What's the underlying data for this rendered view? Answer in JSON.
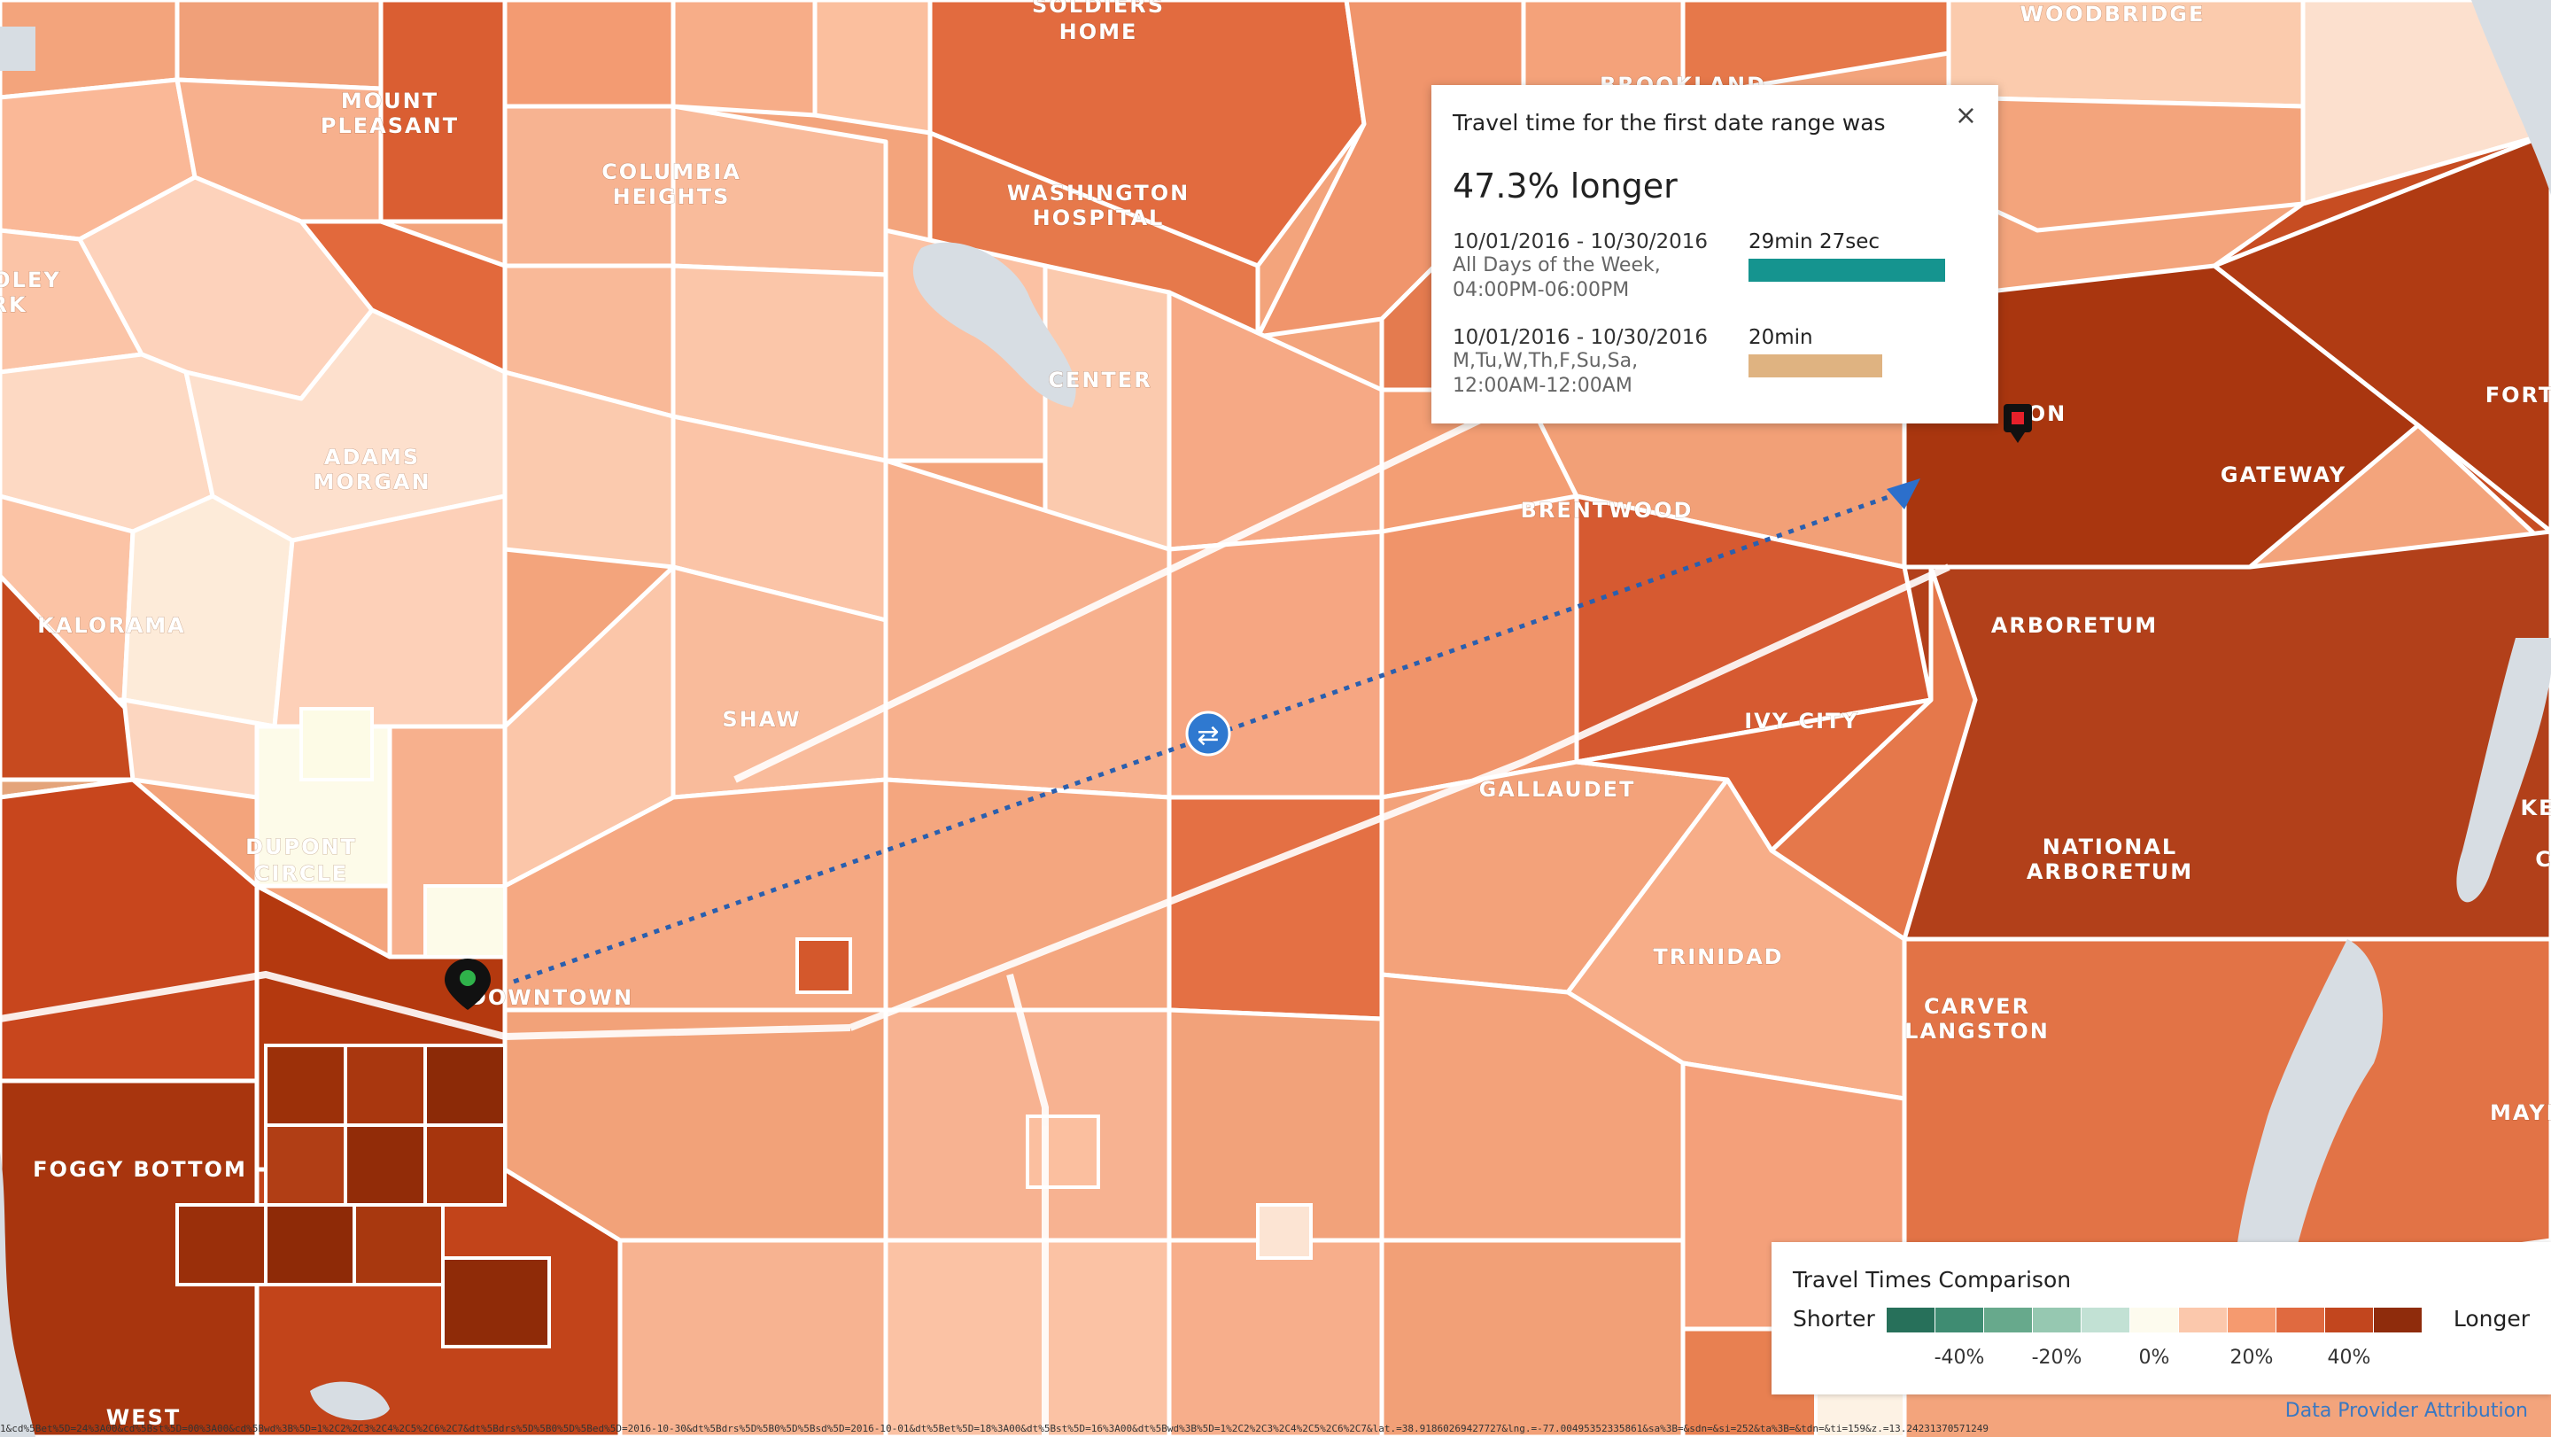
{
  "popup": {
    "title": "Travel time for the first date range was",
    "close_glyph": "×",
    "headline": "47.3% longer",
    "rows": [
      {
        "range": "10/01/2016 - 10/30/2016",
        "sub": "All Days of the Week, 04:00PM-06:00PM",
        "value": "29min 27sec",
        "bar_fraction": 1.0,
        "bar_color": "#15948f"
      },
      {
        "range": "10/01/2016 - 10/30/2016",
        "sub": "M,Tu,W,Th,F,Su,Sa, 12:00AM-12:00AM",
        "value": "20min",
        "bar_fraction": 0.68,
        "bar_color": "#dfb381"
      }
    ]
  },
  "legend": {
    "title": "Travel Times Comparison",
    "shorter": "Shorter",
    "longer": "Longer",
    "colors": [
      "#27705a",
      "#3f8c72",
      "#67a98c",
      "#96c8b1",
      "#c2e1d4",
      "#fdfbee",
      "#fbc8ac",
      "#f59a6f",
      "#e06a40",
      "#c2461e",
      "#8f2c0c"
    ],
    "ticks": [
      "-40%",
      "-20%",
      "0%",
      "20%",
      "40%"
    ]
  },
  "labels": [
    {
      "text": "SOLDIERS",
      "id": "soldiers"
    },
    {
      "text": "HOME",
      "id": "home"
    },
    {
      "text": "WOODBRIDGE",
      "id": "woodbridge"
    },
    {
      "text": "MOUNT",
      "id": "mount"
    },
    {
      "text": "PLEASANT",
      "id": "pleasant"
    },
    {
      "text": "BROOKLAND",
      "id": "brookland"
    },
    {
      "text": "COLUMBIA",
      "id": "columbia"
    },
    {
      "text": "HEIGHTS",
      "id": "heights"
    },
    {
      "text": "WASHINGTON",
      "id": "washington"
    },
    {
      "text": "HOSPITAL",
      "id": "hospital"
    },
    {
      "text": "OLEY",
      "id": "oley"
    },
    {
      "text": "RK",
      "id": "rk"
    },
    {
      "text": "CENTER",
      "id": "center"
    },
    {
      "text": "ADAMS",
      "id": "adams"
    },
    {
      "text": "MORGAN",
      "id": "morgan"
    },
    {
      "text": "DON",
      "id": "don"
    },
    {
      "text": "FORT",
      "id": "fort"
    },
    {
      "text": "GATEWAY",
      "id": "gateway"
    },
    {
      "text": "BRENTWOOD",
      "id": "brentwood"
    },
    {
      "text": "KALORAMA",
      "id": "kalorama"
    },
    {
      "text": "ARBORETUM",
      "id": "arboretum"
    },
    {
      "text": "SHAW",
      "id": "shaw"
    },
    {
      "text": "IVY CITY",
      "id": "ivycity"
    },
    {
      "text": "GALLAUDET",
      "id": "gallaudet"
    },
    {
      "text": "KE",
      "id": "ke"
    },
    {
      "text": "DUPONT",
      "id": "dupont"
    },
    {
      "text": "CIRCLE",
      "id": "circle"
    },
    {
      "text": "NATIONAL",
      "id": "national"
    },
    {
      "text": "ARBORETUM",
      "id": "arboretum2"
    },
    {
      "text": "C",
      "id": "c"
    },
    {
      "text": "TRINIDAD",
      "id": "trinidad"
    },
    {
      "text": "DOWNTOWN",
      "id": "downtown"
    },
    {
      "text": "CARVER",
      "id": "carver"
    },
    {
      "text": "LANGSTON",
      "id": "langston"
    },
    {
      "text": "FOGGY BOTTOM",
      "id": "foggy"
    },
    {
      "text": "MAYF",
      "id": "mayf"
    },
    {
      "text": "WEST",
      "id": "west"
    }
  ],
  "origin_marker_icon": "map-pin-green-icon",
  "destination_marker_icon": "map-pin-red-icon",
  "midpoint_icon": "swap-icon",
  "midpoint_glyph": "⇄",
  "url_text": "1&cd%5Bet%5D=24%3A00&cd%5Bst%5D=00%3A00&cd%5Bwd%3B%5D=1%2C2%2C3%2C4%2C5%2C6%2C7&dt%5Bdrs%5D%5B0%5D%5Bed%5D=2016-10-30&dt%5Bdrs%5D%5B0%5D%5Bsd%5D=2016-10-01&dt%5Bet%5D=18%3A00&dt%5Bst%5D=16%3A00&dt%5Bwd%3B%5D=1%2C2%2C3%2C4%2C5%2C6%2C7&lat.=38.91860269427727&lng.=-77.00495352335861&sa%3B=&sdn=&si=252&ta%3B=&tdn=&ti=159&z.=13.24231370571249",
  "attribution": "Data Provider Attribution"
}
